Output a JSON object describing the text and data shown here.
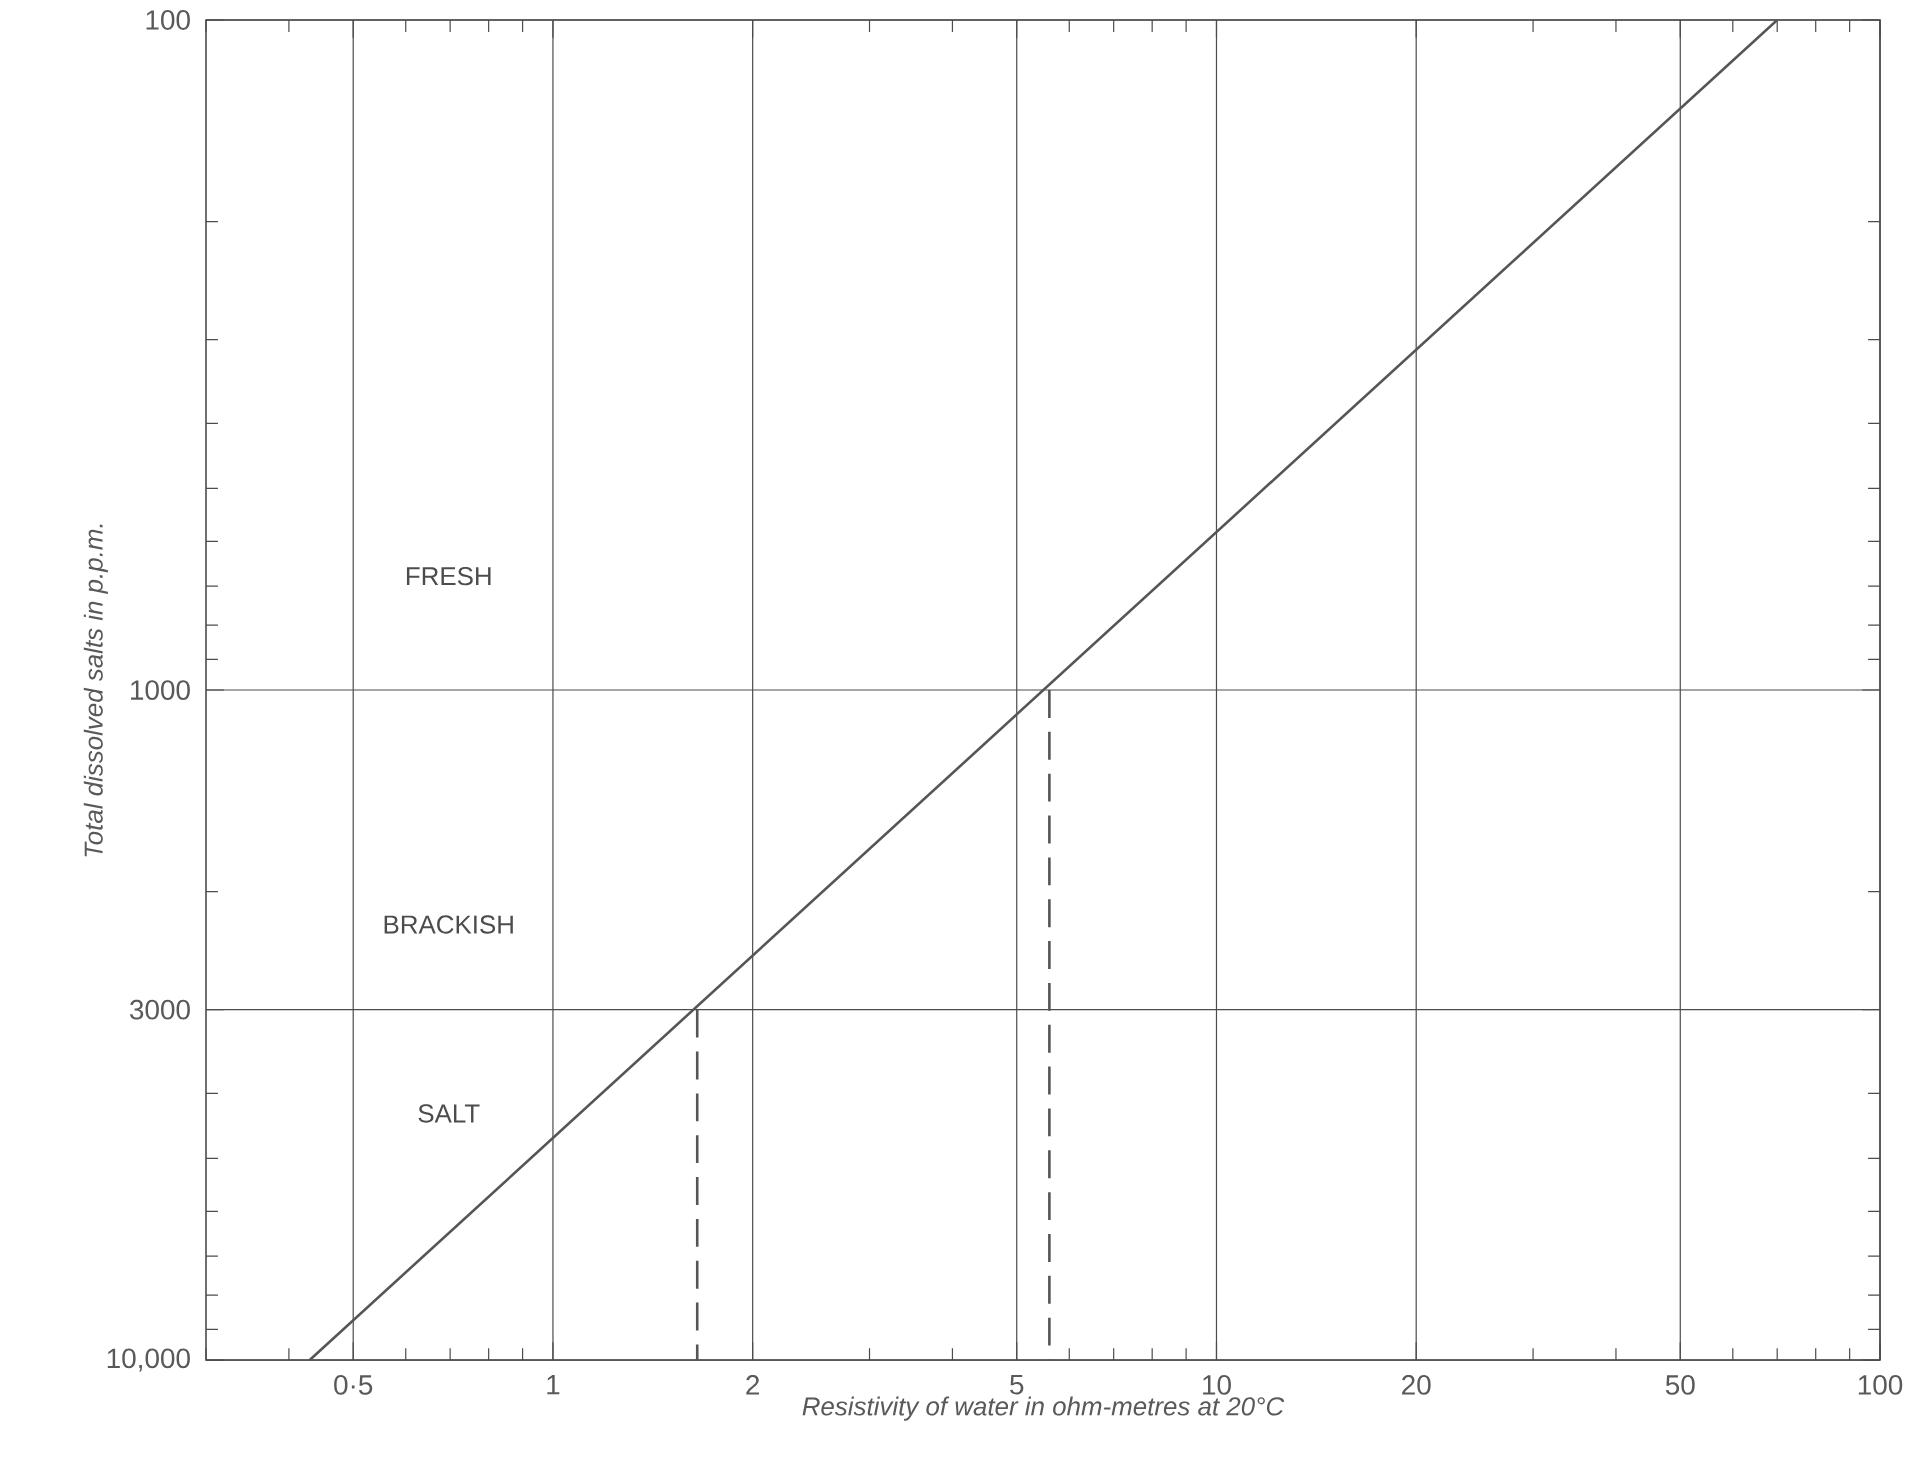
{
  "chart_data": {
    "type": "line",
    "xlabel": "Resistivity of water in ohm-metres at 20°C",
    "ylabel": "Total dissolved salts in p.p.m.",
    "log": "xy",
    "grid": true,
    "xlim": [
      0.3,
      100
    ],
    "ylim": [
      10000,
      100
    ],
    "xticks": [
      {
        "value": 0.5,
        "label": "0·5"
      },
      1,
      2,
      5,
      10,
      20,
      50,
      100
    ],
    "yticks": [
      100,
      1000,
      3000,
      {
        "value": 10000,
        "label": "10,000"
      }
    ],
    "series": [
      {
        "x": [
          0.43,
          70
        ],
        "values": [
          10000,
          100
        ],
        "color": "#555555",
        "line_style": "solid"
      },
      {
        "x": [
          1.65,
          1.65
        ],
        "values": [
          3000,
          10000
        ],
        "color": "#555555",
        "line_style": "dashed"
      },
      {
        "x": [
          5.6,
          5.6
        ],
        "values": [
          1000,
          10000
        ],
        "color": "#555555",
        "line_style": "dashed"
      }
    ],
    "annotations": [
      "FRESH",
      "BRACKISH",
      "SALT"
    ]
  }
}
